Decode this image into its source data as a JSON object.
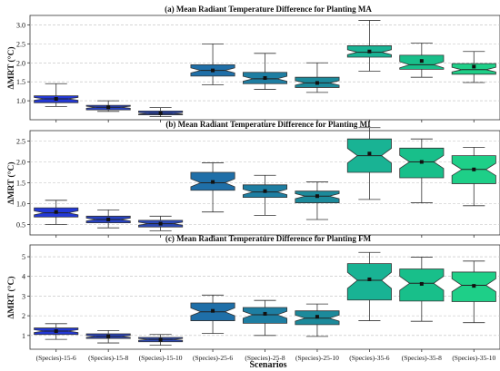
{
  "figure": {
    "xlabel": "Scenarios",
    "categories": [
      "(Species)-15-6",
      "(Species)-15-8",
      "(Species)-15-10",
      "(Species)-25-6",
      "(Species)-25-8",
      "(Species)-25-10",
      "(Species)-35-6",
      "(Species)-35-8",
      "(Species)-35-10"
    ],
    "colors": [
      "#2338d6",
      "#2742c3",
      "#2d49b6",
      "#1f6fa8",
      "#1e7ea2",
      "#1c8a9b",
      "#19b394",
      "#18bf8a",
      "#1ecf88"
    ]
  },
  "chart_data": [
    {
      "type": "box",
      "title": "(a) Mean Radiant Temperature Difference for Planting MA",
      "ylabel": "ΔMRT (°C)",
      "ylim": [
        0.5,
        3.25
      ],
      "yticks": [
        1.0,
        1.5,
        2.0,
        2.5,
        3.0
      ],
      "ytick_labels": [
        "1.0",
        "1.5",
        "2.0",
        "2.5",
        "3.0"
      ],
      "grid": true,
      "categories": [
        "(Species)-15-6",
        "(Species)-15-8",
        "(Species)-15-10",
        "(Species)-25-6",
        "(Species)-25-8",
        "(Species)-25-10",
        "(Species)-35-6",
        "(Species)-35-8",
        "(Species)-35-10"
      ],
      "boxes": [
        {
          "whislo": 0.85,
          "q1": 0.95,
          "med": 1.05,
          "q3": 1.13,
          "whishi": 1.45,
          "mean": 1.05
        },
        {
          "whislo": 0.72,
          "q1": 0.76,
          "med": 0.83,
          "q3": 0.88,
          "whishi": 1.0,
          "mean": 0.83
        },
        {
          "whislo": 0.58,
          "q1": 0.63,
          "med": 0.67,
          "q3": 0.73,
          "whishi": 0.82,
          "mean": 0.67
        },
        {
          "whislo": 1.42,
          "q1": 1.65,
          "med": 1.8,
          "q3": 1.95,
          "whishi": 2.5,
          "mean": 1.8
        },
        {
          "whislo": 1.3,
          "q1": 1.45,
          "med": 1.58,
          "q3": 1.75,
          "whishi": 2.25,
          "mean": 1.6
        },
        {
          "whislo": 1.22,
          "q1": 1.35,
          "med": 1.47,
          "q3": 1.62,
          "whishi": 2.0,
          "mean": 1.47
        },
        {
          "whislo": 1.78,
          "q1": 2.15,
          "med": 2.28,
          "q3": 2.45,
          "whishi": 3.12,
          "mean": 2.3
        },
        {
          "whislo": 1.62,
          "q1": 1.83,
          "med": 1.95,
          "q3": 2.2,
          "whishi": 2.52,
          "mean": 2.05
        },
        {
          "whislo": 1.48,
          "q1": 1.7,
          "med": 1.82,
          "q3": 1.98,
          "whishi": 2.3,
          "mean": 1.9
        }
      ]
    },
    {
      "type": "box",
      "title": "(b) Mean Radiant Temperature Difference for Planting MI",
      "ylabel": "ΔMRT (°C)",
      "ylim": [
        0.25,
        2.75
      ],
      "yticks": [
        0.5,
        1.0,
        1.5,
        2.0,
        2.5
      ],
      "ytick_labels": [
        "0.5",
        "1.0",
        "1.5",
        "2.0",
        "2.5"
      ],
      "grid": true,
      "categories": [
        "(Species)-15-6",
        "(Species)-15-8",
        "(Species)-15-10",
        "(Species)-25-6",
        "(Species)-25-8",
        "(Species)-25-10",
        "(Species)-35-6",
        "(Species)-35-8",
        "(Species)-35-10"
      ],
      "boxes": [
        {
          "whislo": 0.5,
          "q1": 0.68,
          "med": 0.78,
          "q3": 0.9,
          "whishi": 1.08,
          "mean": 0.8
        },
        {
          "whislo": 0.42,
          "q1": 0.54,
          "med": 0.62,
          "q3": 0.7,
          "whishi": 0.85,
          "mean": 0.62
        },
        {
          "whislo": 0.35,
          "q1": 0.44,
          "med": 0.52,
          "q3": 0.6,
          "whishi": 0.7,
          "mean": 0.52
        },
        {
          "whislo": 0.8,
          "q1": 1.32,
          "med": 1.5,
          "q3": 1.75,
          "whishi": 1.98,
          "mean": 1.52
        },
        {
          "whislo": 0.72,
          "q1": 1.15,
          "med": 1.28,
          "q3": 1.45,
          "whishi": 1.68,
          "mean": 1.3
        },
        {
          "whislo": 0.62,
          "q1": 1.02,
          "med": 1.18,
          "q3": 1.3,
          "whishi": 1.52,
          "mean": 1.18
        },
        {
          "whislo": 1.1,
          "q1": 1.75,
          "med": 2.15,
          "q3": 2.55,
          "whishi": 2.82,
          "mean": 2.2
        },
        {
          "whislo": 1.02,
          "q1": 1.62,
          "med": 2.0,
          "q3": 2.33,
          "whishi": 2.55,
          "mean": 2.0
        },
        {
          "whislo": 0.95,
          "q1": 1.48,
          "med": 1.82,
          "q3": 2.15,
          "whishi": 2.35,
          "mean": 1.82
        }
      ]
    },
    {
      "type": "box",
      "title": "(c) Mean Radiant Temperature Difference for Planting FM",
      "ylabel": "ΔMRT (°C)",
      "ylim": [
        0.3,
        5.6
      ],
      "yticks": [
        1,
        2,
        3,
        4,
        5
      ],
      "ytick_labels": [
        "1",
        "2",
        "3",
        "4",
        "5"
      ],
      "grid": true,
      "categories": [
        "(Species)-15-6",
        "(Species)-15-8",
        "(Species)-15-10",
        "(Species)-25-6",
        "(Species)-25-8",
        "(Species)-25-10",
        "(Species)-35-6",
        "(Species)-35-8",
        "(Species)-35-10"
      ],
      "boxes": [
        {
          "whislo": 0.8,
          "q1": 1.05,
          "med": 1.22,
          "q3": 1.38,
          "whishi": 1.6,
          "mean": 1.22
        },
        {
          "whislo": 0.62,
          "q1": 0.85,
          "med": 0.95,
          "q3": 1.08,
          "whishi": 1.25,
          "mean": 0.95
        },
        {
          "whislo": 0.5,
          "q1": 0.68,
          "med": 0.8,
          "q3": 0.9,
          "whishi": 1.05,
          "mean": 0.78
        },
        {
          "whislo": 1.1,
          "q1": 1.75,
          "med": 2.2,
          "q3": 2.65,
          "whishi": 3.05,
          "mean": 2.25
        },
        {
          "whislo": 1.0,
          "q1": 1.62,
          "med": 2.05,
          "q3": 2.42,
          "whishi": 2.78,
          "mean": 2.1
        },
        {
          "whislo": 0.95,
          "q1": 1.55,
          "med": 1.88,
          "q3": 2.25,
          "whishi": 2.6,
          "mean": 1.95
        },
        {
          "whislo": 1.75,
          "q1": 2.8,
          "med": 3.8,
          "q3": 4.65,
          "whishi": 5.22,
          "mean": 3.85
        },
        {
          "whislo": 1.72,
          "q1": 2.75,
          "med": 3.65,
          "q3": 4.38,
          "whishi": 4.98,
          "mean": 3.62
        },
        {
          "whislo": 1.65,
          "q1": 2.72,
          "med": 3.55,
          "q3": 4.22,
          "whishi": 4.78,
          "mean": 3.52
        }
      ]
    }
  ]
}
